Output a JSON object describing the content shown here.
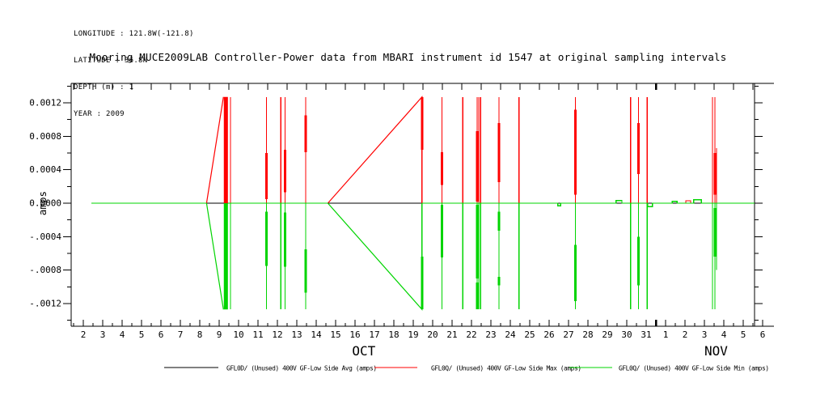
{
  "header_info": {
    "lines": [
      "LONGITUDE : 121.8W(-121.8)",
      "LATITUDE : 36.8N",
      "DEPTH (m) : 1",
      "YEAR : 2009"
    ]
  },
  "title": "Mooring MUCE2009LAB Controller-Power data from MBARI instrument id 1547 at original sampling intervals",
  "colors": {
    "avg": "#000000",
    "max": "#ff0000",
    "min": "#00d400",
    "frame": "#000000"
  },
  "chart_data": {
    "type": "line",
    "title": "Mooring MUCE2009LAB Controller-Power data from MBARI instrument id 1547 at original sampling intervals",
    "ylabel": "amps",
    "y_unit": "amps",
    "ylim": [
      -0.00145,
      0.00143
    ],
    "y_major_ticks": [
      {
        "v": 0.0012,
        "label": "0.0012"
      },
      {
        "v": 0.0008,
        "label": "0.0008"
      },
      {
        "v": 0.0004,
        "label": "0.0004"
      },
      {
        "v": 0.0,
        "label": "0.0000"
      },
      {
        "v": -0.0004,
        "label": "-.0004"
      },
      {
        "v": -0.0008,
        "label": "-.0008"
      },
      {
        "v": -0.0012,
        "label": "-.0012"
      }
    ],
    "y_minor_ticks": [
      0.0014,
      0.001,
      0.0006,
      0.0002,
      -0.0002,
      -0.0006,
      -0.001,
      -0.0014
    ],
    "x_axis": {
      "oct_days": [
        2,
        3,
        4,
        5,
        6,
        7,
        8,
        9,
        10,
        11,
        12,
        13,
        14,
        15,
        16,
        17,
        18,
        19,
        20,
        21,
        22,
        23,
        24,
        25,
        26,
        27,
        28,
        29,
        30,
        31
      ],
      "nov_days": [
        1,
        2,
        3,
        4,
        5,
        6
      ],
      "month_labels": [
        {
          "label": "OCT",
          "day": 16.45
        },
        {
          "label": "NOV",
          "day": 34.6
        }
      ],
      "month_boundary_day": 31.5,
      "axis_start_day": 1.38,
      "axis_end_day": 37.6,
      "right_frame_day": 36.58
    },
    "series": [
      {
        "name": "GFL0D/ (Unused) 400V GF-Low Side Avg (amps)",
        "color": "#000000",
        "kind": "avg"
      },
      {
        "name": "GFL0Q/ (Unused) 400V GF-Low Side Max (amps)",
        "color": "#ff0000",
        "kind": "max"
      },
      {
        "name": "GFL0Q/ (Unused) 400V GF-Low Side Min (amps)",
        "color": "#00d400",
        "kind": "min"
      }
    ],
    "data_start_day": 2.42,
    "data_end_day": 36.58,
    "baseline_value": 0.0,
    "spike_peak": 0.00127,
    "ramp": {
      "start_day": 8.35,
      "peak_day": 9.22,
      "peak_hi": 0.00127,
      "peak_lo": -0.00127
    },
    "block": {
      "d0": 9.24,
      "d1": 9.45,
      "hi": 0.00127,
      "lo": -0.00127
    },
    "gap_triangle": {
      "d0": 14.6,
      "d1": 19.45,
      "hi": 0.00127,
      "lo": -0.00127
    },
    "min_baseline_segments": [
      [
        2.42,
        8.35
      ],
      [
        9.45,
        14.6
      ],
      [
        19.45,
        36.58
      ]
    ],
    "spikes": [
      {
        "d": 9.58,
        "hi": 0.00127,
        "lo": -0.00127
      },
      {
        "d": 11.44,
        "hi": 0.00127,
        "lo": -0.00127,
        "thick": [
          [
            5e-05,
            0.0006
          ],
          [
            -0.0001,
            -0.00075
          ]
        ]
      },
      {
        "d": 12.18,
        "hi": 0.00127,
        "lo": -0.00127
      },
      {
        "d": 12.4,
        "hi": 0.00127,
        "lo": -0.00127,
        "thick": [
          [
            0.00013,
            0.00064
          ],
          [
            -0.00011,
            -0.00076
          ]
        ]
      },
      {
        "d": 13.46,
        "hi": 0.00127,
        "lo": -0.00127,
        "thick": [
          [
            0.00061,
            0.00105
          ],
          [
            -0.00055,
            -0.00107
          ]
        ]
      },
      {
        "d": 19.45,
        "hi": 0.00127,
        "lo": -0.00127,
        "thick": [
          [
            0.00064,
            0.00127
          ],
          [
            -0.00064,
            -0.00127
          ]
        ]
      },
      {
        "d": 20.48,
        "hi": 0.00127,
        "lo": -0.00127,
        "thick": [
          [
            0.00022,
            0.00061
          ],
          [
            -2e-05,
            -0.00065
          ]
        ]
      },
      {
        "d": 21.55,
        "hi": 0.00127,
        "lo": -0.00127
      },
      {
        "d": 22.29,
        "hi": 0.00127,
        "lo": -0.00127,
        "thick": [
          [
            2e-05,
            0.00086
          ],
          [
            -2e-05,
            -0.0009
          ],
          [
            -0.00095,
            -0.00127
          ]
        ]
      },
      {
        "d": 22.38,
        "hi": 0.00127,
        "lo": -0.00127
      },
      {
        "d": 22.47,
        "hi": 0.00127,
        "lo": -0.00127
      },
      {
        "d": 23.42,
        "hi": 0.00127,
        "lo": -0.00127,
        "thick": [
          [
            0.00025,
            0.00096
          ],
          [
            -0.0001,
            -0.00033
          ],
          [
            -0.00088,
            -0.00098
          ]
        ]
      },
      {
        "d": 24.45,
        "hi": 0.00127,
        "lo": -0.00127
      },
      {
        "d": 27.35,
        "hi": 0.00127,
        "lo": -0.00127,
        "thick": [
          [
            0.0001,
            0.00112
          ],
          [
            -0.0005,
            -0.00117
          ]
        ]
      },
      {
        "d": 30.2,
        "hi": 0.00127,
        "lo": -0.00127
      },
      {
        "d": 30.6,
        "hi": 0.00127,
        "lo": -0.00127,
        "thick": [
          [
            0.00035,
            0.00096
          ],
          [
            -0.0004,
            -0.00098
          ]
        ]
      },
      {
        "d": 31.05,
        "hi": 0.00127,
        "lo": -0.00127
      },
      {
        "d": 34.42,
        "hi": 0.00127,
        "lo": -0.00127
      },
      {
        "d": 34.54,
        "hi": 0.00127,
        "lo": -0.00127,
        "thick": [
          [
            0.0001,
            0.0006
          ],
          [
            -6e-05,
            -0.00064
          ]
        ]
      },
      {
        "d": 34.62,
        "hi": 0.00066,
        "lo": -0.0008
      }
    ],
    "wiggles_min": [
      {
        "d0": 26.45,
        "d1": 26.6,
        "v": -3e-05
      },
      {
        "d0": 29.45,
        "d1": 29.75,
        "v": 3e-05
      },
      {
        "d0": 31.08,
        "d1": 31.33,
        "v": -4e-05
      },
      {
        "d0": 32.35,
        "d1": 32.6,
        "v": 2e-05
      },
      {
        "d0": 33.45,
        "d1": 33.85,
        "v": 4e-05
      }
    ],
    "wiggles_max": [
      {
        "d0": 33.05,
        "d1": 33.3,
        "v": 3e-05
      }
    ]
  },
  "legend": {
    "items": [
      {
        "label": "GFL0D/ (Unused) 400V GF-Low Side Avg (amps)",
        "color": "#000000"
      },
      {
        "label": "GFL0Q/ (Unused) 400V GF-Low Side Max (amps)",
        "color": "#ff0000"
      },
      {
        "label": "GFL0Q/ (Unused) 400V GF-Low Side Min (amps)",
        "color": "#00d400"
      }
    ]
  }
}
